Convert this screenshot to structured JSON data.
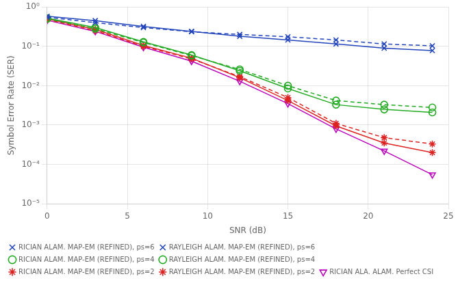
{
  "chart_data": {
    "type": "line",
    "xlabel": "SNR (dB)",
    "ylabel": "Symbol Error Rate (SER)",
    "x": [
      0,
      3,
      6,
      9,
      12,
      15,
      18,
      21,
      24
    ],
    "series": [
      {
        "name": "RICIAN ALAM. MAP-EM (REFINED), ps=6",
        "color": "#2244bb",
        "marker": "x",
        "line_style": "solid",
        "values": [
          0.58,
          0.45,
          0.32,
          0.24,
          0.18,
          0.145,
          0.115,
          0.09,
          0.078
        ]
      },
      {
        "name": "RAYLEIGH ALAM. MAP-EM (REFINED), ps=6",
        "color": "#2244bb",
        "marker": "x",
        "line_style": "dashed",
        "values": [
          0.55,
          0.4,
          0.3,
          0.235,
          0.2,
          0.175,
          0.145,
          0.115,
          0.103
        ]
      },
      {
        "name": "RICIAN ALAM. MAP-EM (REFINED), ps=4",
        "color": "#22aa22",
        "marker": "circle",
        "line_style": "solid",
        "values": [
          0.52,
          0.3,
          0.13,
          0.06,
          0.024,
          0.0085,
          0.0033,
          0.0025,
          0.0021
        ]
      },
      {
        "name": "RAYLEIGH ALAM. MAP-EM (REFINED), ps=4",
        "color": "#22aa22",
        "marker": "circle",
        "line_style": "dashed",
        "values": [
          0.5,
          0.28,
          0.125,
          0.058,
          0.026,
          0.01,
          0.0042,
          0.0033,
          0.0028
        ]
      },
      {
        "name": "RICIAN ALAM. MAP-EM (REFINED), ps=2",
        "color": "#dd2222",
        "marker": "star",
        "line_style": "solid",
        "values": [
          0.5,
          0.27,
          0.105,
          0.05,
          0.016,
          0.0042,
          0.00095,
          0.00035,
          0.0002
        ]
      },
      {
        "name": "RAYLEIGH ALAM. MAP-EM (REFINED), ps=2",
        "color": "#dd2222",
        "marker": "star",
        "line_style": "dashed",
        "values": [
          0.48,
          0.25,
          0.1,
          0.048,
          0.017,
          0.005,
          0.0011,
          0.00048,
          0.00033
        ]
      },
      {
        "name": "RICIAN ALA. ALAM. Perfect CSI",
        "color": "#bb00bb",
        "marker": "triangle_down",
        "line_style": "solid",
        "values": [
          0.46,
          0.24,
          0.095,
          0.042,
          0.013,
          0.0035,
          0.0008,
          0.00022,
          5.5e-05
        ]
      }
    ],
    "xlim": [
      0,
      25
    ],
    "xticks": [
      0,
      5,
      10,
      15,
      20,
      25
    ],
    "ylim": [
      1e-05,
      1.0
    ],
    "yticks": [
      {
        "value": 1e-05,
        "label": "10⁻⁵"
      },
      {
        "value": 0.0001,
        "label": "10⁻⁴"
      },
      {
        "value": 0.001,
        "label": "10⁻³"
      },
      {
        "value": 0.01,
        "label": "10⁻²"
      },
      {
        "value": 0.1,
        "label": "10⁻¹"
      },
      {
        "value": 1.0,
        "label": "10⁰"
      }
    ],
    "log": "y",
    "grid": true,
    "legend": "lower left"
  }
}
